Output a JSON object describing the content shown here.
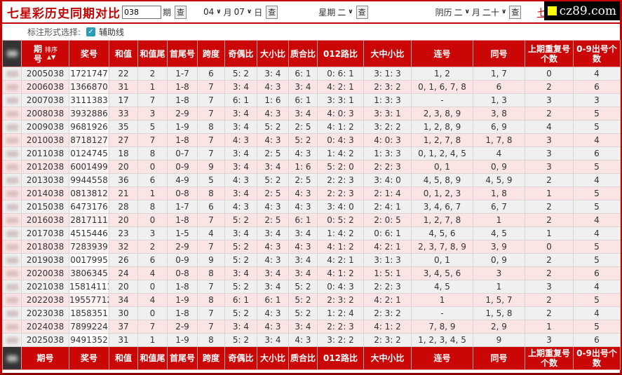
{
  "banner": {
    "title": "七星彩历史同期对比",
    "period_value": "038",
    "period_unit": "期",
    "search_label": "查",
    "month_value": "04",
    "month_unit": "月",
    "day_value": "07",
    "day_unit": "日",
    "weekday_label": "星期",
    "weekday_value": "二",
    "lunar_label": "阴历",
    "lunar_month_value": "二",
    "lunar_month_unit": "月",
    "lunar_day_value": "二十",
    "partial_link_text": "七星",
    "logo_text": "cz89.com"
  },
  "options": {
    "label": "标注形式选择:",
    "checkbox_checked": true,
    "checkbox_label": "辅助线",
    "check_glyph": "✓"
  },
  "colors": {
    "brand_red": "#c30000",
    "header_red": "#cb0606",
    "row_gray": "#f0f0f0",
    "row_pink": "#fbe4e4",
    "logo_yellow": "#ffff00",
    "checkbox_teal": "#2d9cb8"
  },
  "table": {
    "sort_label": "排序",
    "headers": [
      "期号",
      "奖号",
      "和值",
      "和值尾",
      "首尾号",
      "跨度",
      "奇偶比",
      "大小比",
      "质合比",
      "012路比",
      "大中小比",
      "连号",
      "同号",
      "上期重复号个数",
      "0-9出号个数"
    ],
    "rows": [
      [
        "2005038",
        "1721747",
        "22",
        "2",
        "1-7",
        "6",
        "5: 2",
        "3: 4",
        "6: 1",
        "0: 6: 1",
        "3: 1: 3",
        "1, 2",
        "1, 7",
        "0",
        "4"
      ],
      [
        "2006038",
        "1366870",
        "31",
        "1",
        "1-8",
        "7",
        "3: 4",
        "4: 3",
        "3: 4",
        "4: 2: 1",
        "2: 3: 2",
        "0, 1, 6, 7, 8",
        "6",
        "2",
        "6"
      ],
      [
        "2007038",
        "3111383",
        "17",
        "7",
        "1-8",
        "7",
        "6: 1",
        "1: 6",
        "6: 1",
        "3: 3: 1",
        "1: 3: 3",
        "-",
        "1, 3",
        "3",
        "3"
      ],
      [
        "2008038",
        "3932886",
        "33",
        "3",
        "2-9",
        "7",
        "3: 4",
        "4: 3",
        "3: 4",
        "4: 0: 3",
        "3: 3: 1",
        "2, 3, 8, 9",
        "3, 8",
        "2",
        "5"
      ],
      [
        "2009038",
        "9681926",
        "35",
        "5",
        "1-9",
        "8",
        "3: 4",
        "5: 2",
        "2: 5",
        "4: 1: 2",
        "3: 2: 2",
        "1, 2, 8, 9",
        "6, 9",
        "4",
        "5"
      ],
      [
        "2010038",
        "8718127",
        "27",
        "7",
        "1-8",
        "7",
        "4: 3",
        "4: 3",
        "5: 2",
        "0: 4: 3",
        "4: 0: 3",
        "1, 2, 7, 8",
        "1, 7, 8",
        "3",
        "4"
      ],
      [
        "2011038",
        "0124745",
        "18",
        "8",
        "0-7",
        "7",
        "3: 4",
        "2: 5",
        "4: 3",
        "1: 4: 2",
        "1: 3: 3",
        "0, 1, 2, 4, 5",
        "4",
        "3",
        "6"
      ],
      [
        "2012038",
        "6001499",
        "20",
        "0",
        "0-9",
        "9",
        "3: 4",
        "3: 4",
        "1: 6",
        "5: 2: 0",
        "2: 2: 3",
        "0, 1",
        "0, 9",
        "3",
        "5"
      ],
      [
        "2013038",
        "9944558",
        "36",
        "6",
        "4-9",
        "5",
        "4: 3",
        "5: 2",
        "2: 5",
        "2: 2: 3",
        "3: 4: 0",
        "4, 5, 8, 9",
        "4, 5, 9",
        "2",
        "4"
      ],
      [
        "2014038",
        "0813812",
        "21",
        "1",
        "0-8",
        "8",
        "3: 4",
        "2: 5",
        "4: 3",
        "2: 2: 3",
        "2: 1: 4",
        "0, 1, 2, 3",
        "1, 8",
        "1",
        "5"
      ],
      [
        "2015038",
        "6473176",
        "28",
        "8",
        "1-7",
        "6",
        "4: 3",
        "4: 3",
        "4: 3",
        "3: 4: 0",
        "2: 4: 1",
        "3, 4, 6, 7",
        "6, 7",
        "2",
        "5"
      ],
      [
        "2016038",
        "2817111",
        "20",
        "0",
        "1-8",
        "7",
        "5: 2",
        "2: 5",
        "6: 1",
        "0: 5: 2",
        "2: 0: 5",
        "1, 2, 7, 8",
        "1",
        "2",
        "4"
      ],
      [
        "2017038",
        "4515446",
        "23",
        "3",
        "1-5",
        "4",
        "3: 4",
        "3: 4",
        "3: 4",
        "1: 4: 2",
        "0: 6: 1",
        "4, 5, 6",
        "4, 5",
        "1",
        "4"
      ],
      [
        "2018038",
        "7283939",
        "32",
        "2",
        "2-9",
        "7",
        "5: 2",
        "4: 3",
        "4: 3",
        "4: 1: 2",
        "4: 2: 1",
        "2, 3, 7, 8, 9",
        "3, 9",
        "0",
        "5"
      ],
      [
        "2019038",
        "0017995",
        "26",
        "6",
        "0-9",
        "9",
        "5: 2",
        "4: 3",
        "3: 4",
        "4: 2: 1",
        "3: 1: 3",
        "0, 1",
        "0, 9",
        "2",
        "5"
      ],
      [
        "2020038",
        "3806345",
        "24",
        "4",
        "0-8",
        "8",
        "3: 4",
        "3: 4",
        "3: 4",
        "4: 1: 2",
        "1: 5: 1",
        "3, 4, 5, 6",
        "3",
        "2",
        "6"
      ],
      [
        "2021038",
        "15814111",
        "20",
        "0",
        "1-8",
        "7",
        "5: 2",
        "3: 4",
        "5: 2",
        "0: 4: 3",
        "2: 2: 3",
        "4, 5",
        "1",
        "3",
        "4"
      ],
      [
        "2022038",
        "19557712",
        "34",
        "4",
        "1-9",
        "8",
        "6: 1",
        "6: 1",
        "5: 2",
        "2: 3: 2",
        "4: 2: 1",
        "1",
        "1, 5, 7",
        "2",
        "5"
      ],
      [
        "2023038",
        "1858351",
        "30",
        "0",
        "1-8",
        "7",
        "5: 2",
        "4: 3",
        "5: 2",
        "1: 2: 4",
        "2: 3: 2",
        "-",
        "1, 5, 8",
        "2",
        "4"
      ],
      [
        "2024038",
        "7899224",
        "37",
        "7",
        "2-9",
        "7",
        "3: 4",
        "4: 3",
        "3: 4",
        "2: 2: 3",
        "4: 1: 2",
        "7, 8, 9",
        "2, 9",
        "1",
        "5"
      ],
      [
        "2025038",
        "9491352",
        "31",
        "1",
        "1-9",
        "8",
        "5: 2",
        "3: 4",
        "4: 3",
        "3: 2: 2",
        "2: 3: 2",
        "1, 2, 3, 4, 5",
        "9",
        "3",
        "6"
      ]
    ]
  }
}
